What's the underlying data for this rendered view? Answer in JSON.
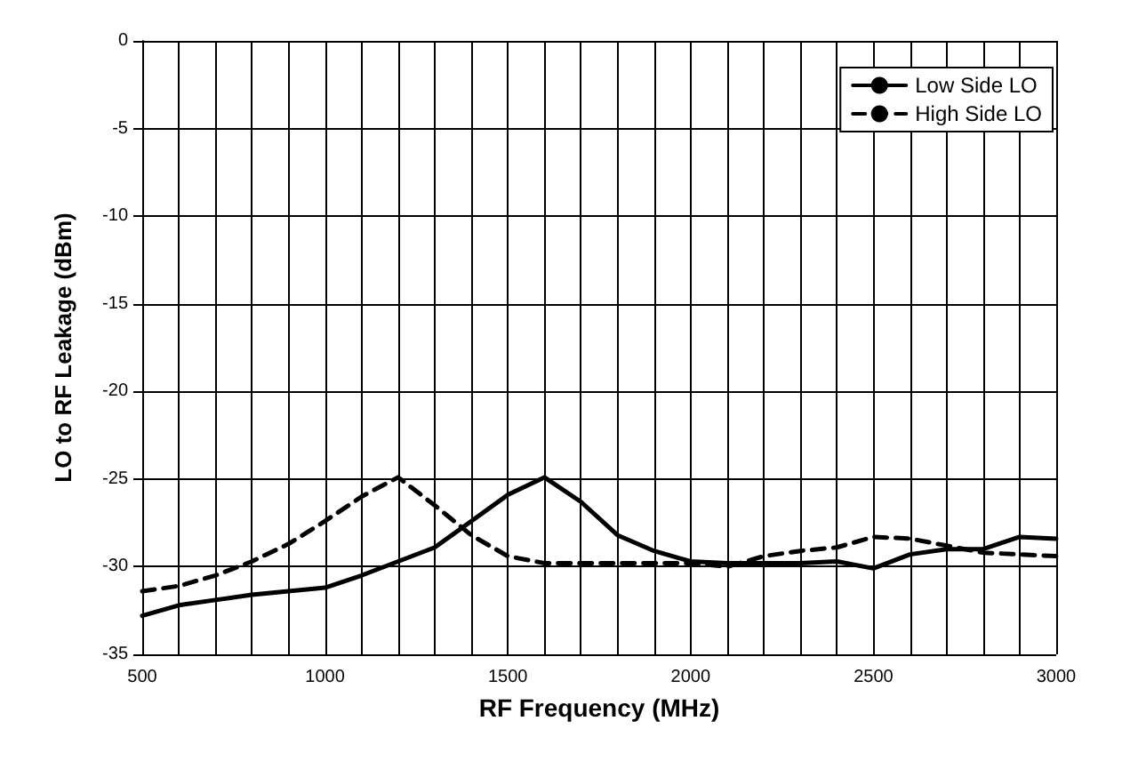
{
  "chart_data": {
    "type": "line",
    "xlabel": "RF Frequency (MHz)",
    "ylabel": "LO to RF Leakage (dBm)",
    "x": [
      500,
      600,
      700,
      800,
      900,
      1000,
      1100,
      1200,
      1300,
      1400,
      1500,
      1600,
      1700,
      1800,
      1900,
      2000,
      2100,
      2200,
      2300,
      2400,
      2500,
      2600,
      2700,
      2800,
      2900,
      3000
    ],
    "series": [
      {
        "name": "Low Side LO",
        "color": "#000000",
        "line_style": "solid",
        "values": [
          -32.8,
          -32.2,
          -31.9,
          -31.6,
          -31.4,
          -31.2,
          -30.5,
          -29.7,
          -28.9,
          -27.4,
          -25.9,
          -24.9,
          -26.3,
          -28.2,
          -29.1,
          -29.7,
          -29.8,
          -29.8,
          -29.8,
          -29.7,
          -30.1,
          -29.3,
          -29.0,
          -29.0,
          -28.3,
          -28.4
        ]
      },
      {
        "name": "High Side LO",
        "color": "#000000",
        "line_style": "dashed",
        "values": [
          -31.4,
          -31.1,
          -30.5,
          -29.7,
          -28.7,
          -27.4,
          -26.0,
          -24.9,
          -26.5,
          -28.2,
          -29.4,
          -29.8,
          -29.8,
          -29.8,
          -29.8,
          -29.8,
          -30.0,
          -29.4,
          -29.1,
          -28.9,
          -28.3,
          -28.4,
          -28.8,
          -29.2,
          -29.3,
          -29.4
        ]
      }
    ],
    "xlim": [
      500,
      3000
    ],
    "xticks": [
      500,
      1000,
      1500,
      2000,
      2500,
      3000
    ],
    "ylim": [
      -35,
      0
    ],
    "yticks": [
      -35,
      -30,
      -25,
      -20,
      -15,
      -10,
      -5,
      0
    ],
    "grid": true,
    "legend": "top right",
    "marker": "none"
  }
}
